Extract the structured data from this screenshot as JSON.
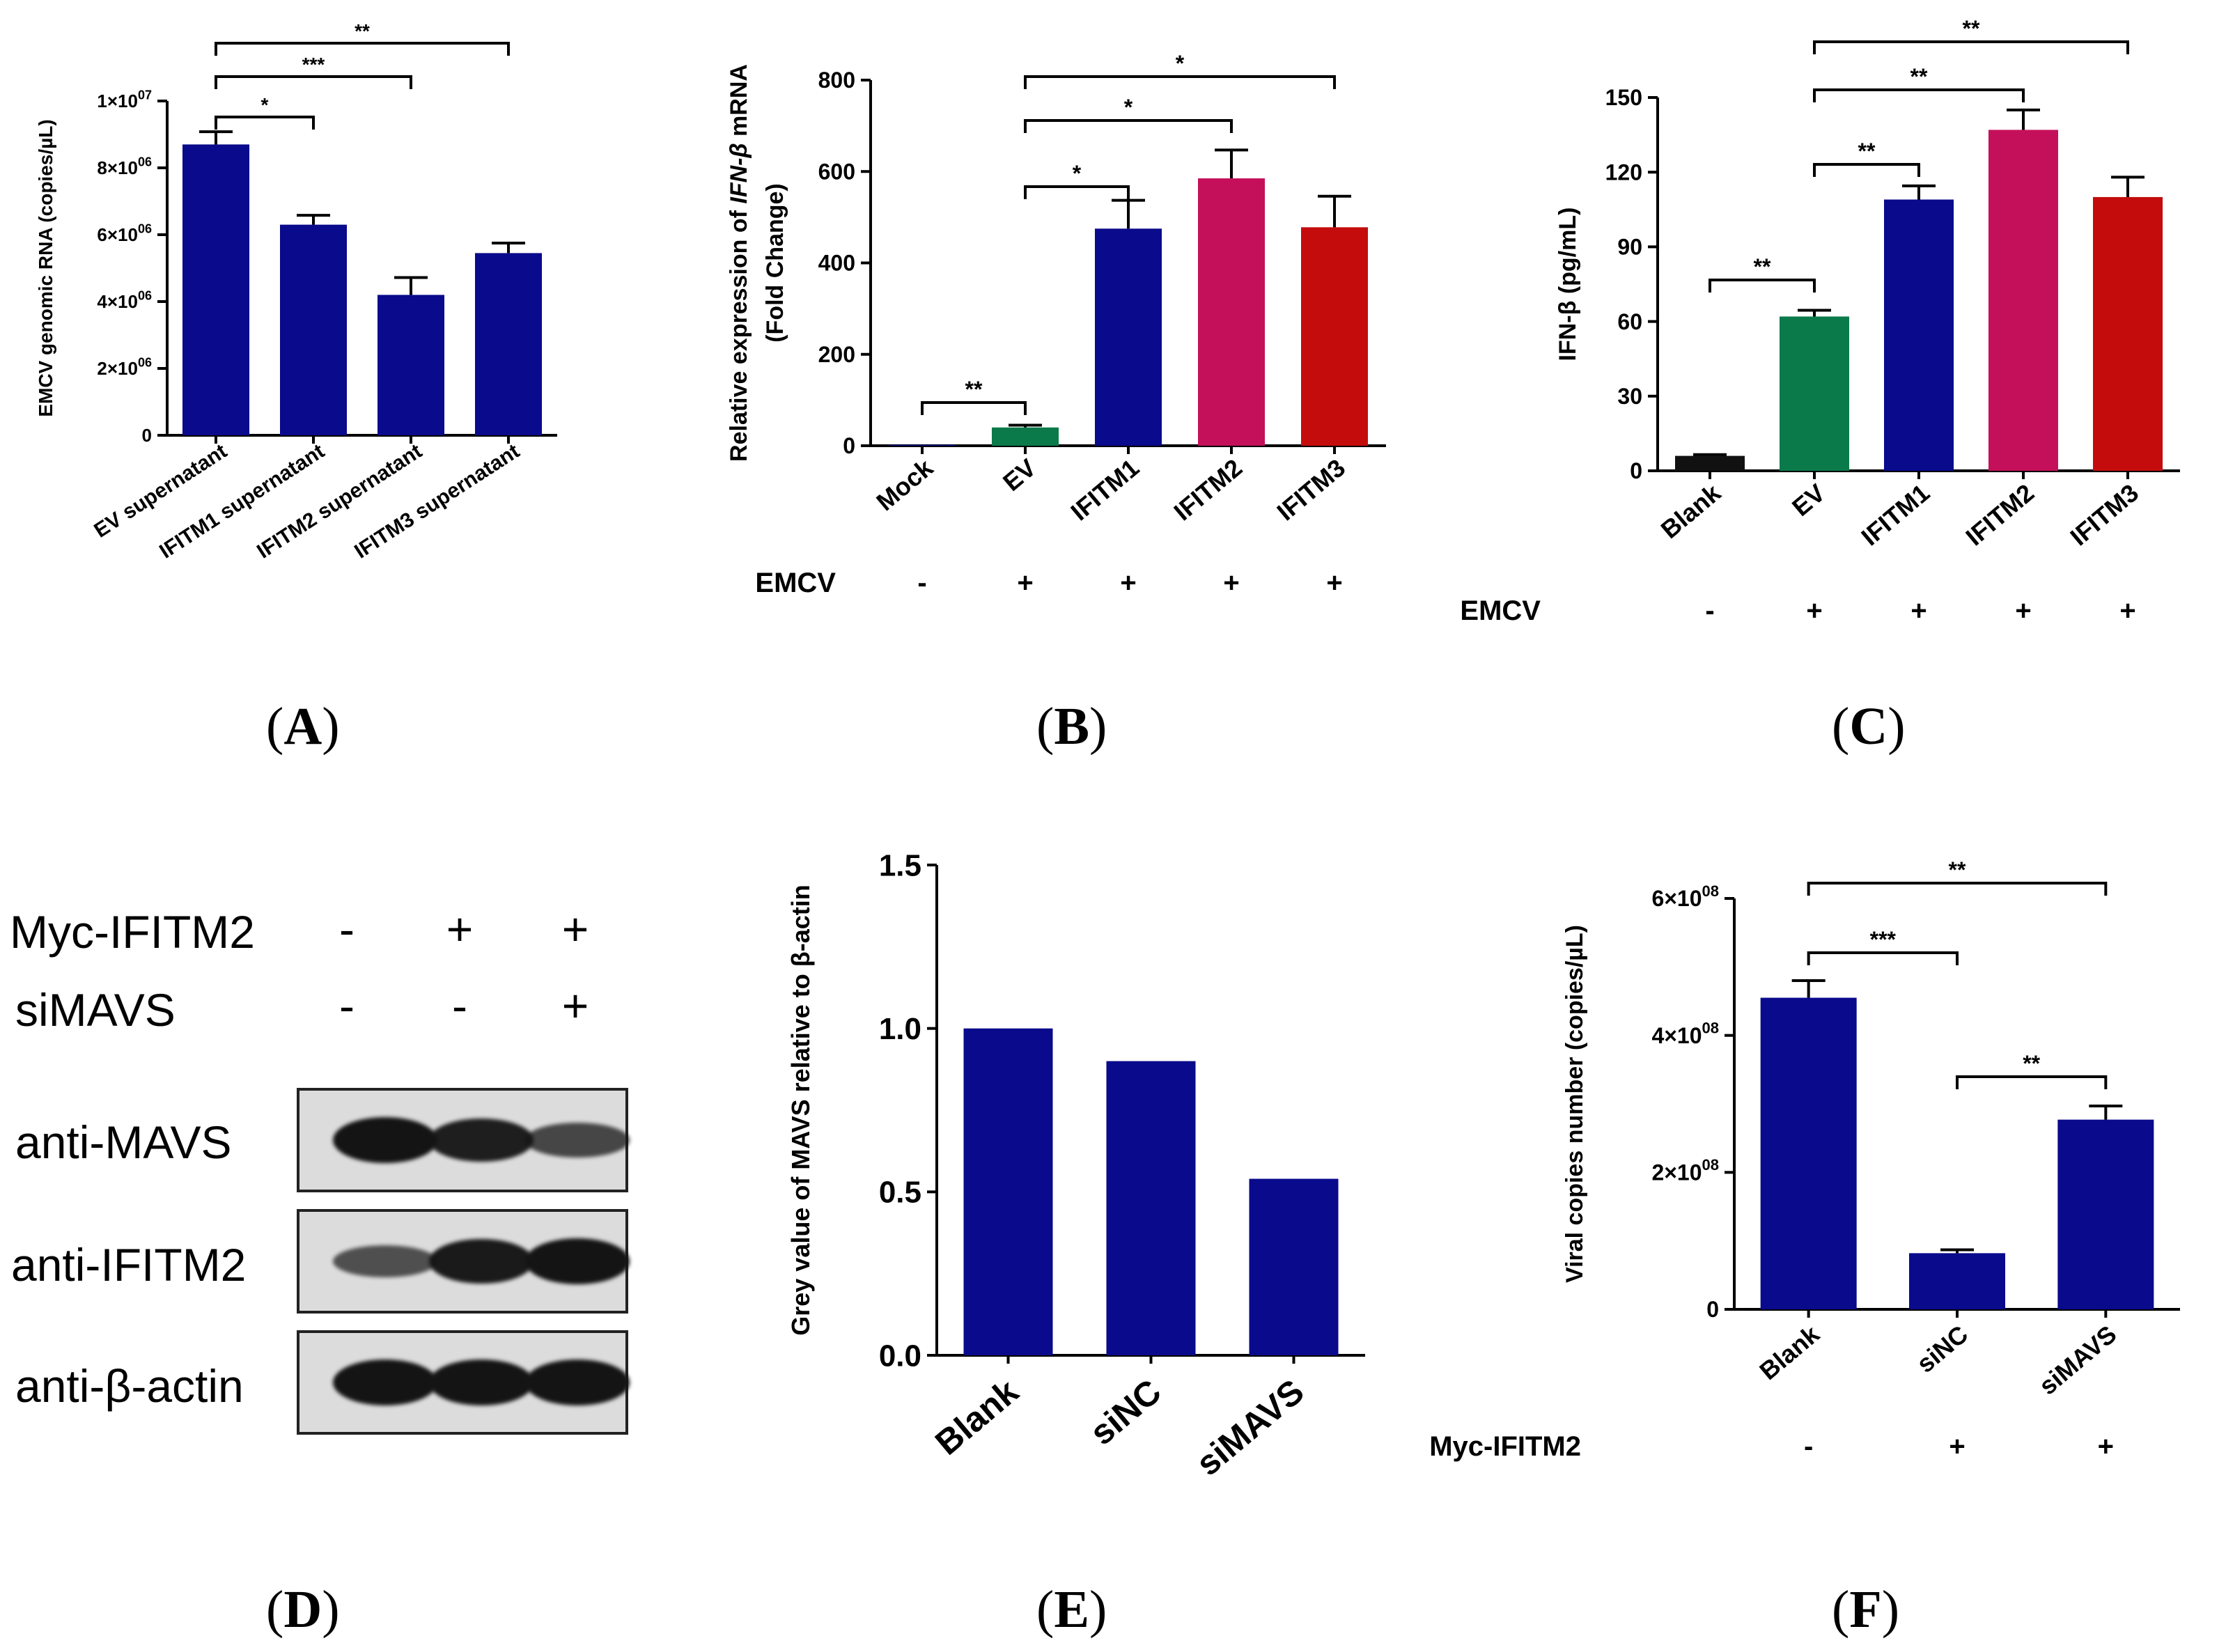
{
  "colors": {
    "navy": "#0a0a8c",
    "green": "#0b7a4a",
    "magenta": "#c4105a",
    "red": "#c40c0c",
    "black": "#111111"
  },
  "panel_labels": [
    "A",
    "B",
    "C",
    "D",
    "E",
    "F"
  ],
  "chart_data": [
    {
      "panel": "A",
      "type": "bar",
      "categories": [
        "EV supernatant",
        "IFITM1 supernatant",
        "IFITM2 supernatant",
        "IFITM3 supernatant"
      ],
      "values": [
        8700000,
        6300000,
        4200000,
        5450000
      ],
      "errors": [
        380000,
        280000,
        520000,
        300000
      ],
      "bar_colors": [
        "navy",
        "navy",
        "navy",
        "navy"
      ],
      "ylabel": "EMCV genomic RNA (copies/µL)",
      "ylim": [
        0,
        10000000
      ],
      "yticks": [
        0,
        2000000,
        4000000,
        6000000,
        8000000,
        10000000
      ],
      "ytick_labels": [
        "0",
        "2×10",
        "4×10",
        "6×10",
        "8×10",
        "1×10"
      ],
      "ytick_exps": [
        "",
        "06",
        "06",
        "06",
        "06",
        "07"
      ],
      "significance": [
        {
          "from": 0,
          "to": 1,
          "label": "*"
        },
        {
          "from": 0,
          "to": 2,
          "label": "***"
        },
        {
          "from": 0,
          "to": 3,
          "label": "**"
        }
      ]
    },
    {
      "panel": "B",
      "type": "bar",
      "categories": [
        "Mock",
        "EV",
        "IFITM1",
        "IFITM2",
        "IFITM3"
      ],
      "values": [
        2,
        40,
        475,
        585,
        478
      ],
      "errors": [
        0,
        5,
        62,
        62,
        68
      ],
      "bar_colors": [
        "navy",
        "green",
        "navy",
        "magenta",
        "red"
      ],
      "ylabel_parts": [
        "Relative expression of ",
        "IFN-β",
        " mRNA"
      ],
      "ylabel2": "(Fold Change)",
      "ylim": [
        0,
        800
      ],
      "yticks": [
        0,
        200,
        400,
        600,
        800
      ],
      "treatment": {
        "label": "EMCV",
        "signs": [
          "-",
          "+",
          "+",
          "+",
          "+"
        ]
      },
      "significance": [
        {
          "from": 0,
          "to": 1,
          "label": "**"
        },
        {
          "from": 1,
          "to": 2,
          "label": "*"
        },
        {
          "from": 1,
          "to": 3,
          "label": "*"
        },
        {
          "from": 1,
          "to": 4,
          "label": "*"
        }
      ]
    },
    {
      "panel": "C",
      "type": "bar",
      "categories": [
        "Blank",
        "EV",
        "IFITM1",
        "IFITM2",
        "IFITM3"
      ],
      "values": [
        6,
        62,
        109,
        137,
        110
      ],
      "errors": [
        0.5,
        2.5,
        5.5,
        8,
        8
      ],
      "bar_colors": [
        "black",
        "green",
        "navy",
        "magenta",
        "red"
      ],
      "ylabel": "IFN-β (pg/mL)",
      "ylim": [
        0,
        150
      ],
      "yticks": [
        0,
        30,
        60,
        90,
        120,
        150
      ],
      "treatment": {
        "label": "EMCV",
        "signs": [
          "-",
          "+",
          "+",
          "+",
          "+"
        ]
      },
      "significance": [
        {
          "from": 0,
          "to": 1,
          "label": "**"
        },
        {
          "from": 1,
          "to": 2,
          "label": "**"
        },
        {
          "from": 1,
          "to": 3,
          "label": "**"
        },
        {
          "from": 1,
          "to": 4,
          "label": "**"
        }
      ]
    },
    {
      "panel": "E",
      "type": "bar",
      "categories": [
        "Blank",
        "siNC",
        "siMAVS"
      ],
      "values": [
        1.0,
        0.9,
        0.54
      ],
      "errors": [],
      "bar_colors": [
        "navy",
        "navy",
        "navy"
      ],
      "ylabel": "Grey value of MAVS relative to β-actin",
      "ylim": [
        0,
        1.5
      ],
      "yticks": [
        0,
        0.5,
        1.0,
        1.5
      ],
      "ytick_labels": [
        "0.0",
        "0.5",
        "1.0",
        "1.5"
      ]
    },
    {
      "panel": "F",
      "type": "bar",
      "categories": [
        "Blank",
        "siNC",
        "siMAVS"
      ],
      "values": [
        455000000,
        82000000,
        277000000
      ],
      "errors": [
        25000000,
        5000000,
        20000000
      ],
      "bar_colors": [
        "navy",
        "navy",
        "navy"
      ],
      "ylabel": "Viral copies number (copies/µL)",
      "ylim": [
        0,
        600000000
      ],
      "yticks": [
        0,
        200000000,
        400000000,
        600000000
      ],
      "ytick_labels": [
        "0",
        "2×10",
        "4×10",
        "6×10"
      ],
      "ytick_exps": [
        "",
        "08",
        "08",
        "08"
      ],
      "treatment": {
        "label": "Myc-IFITM2",
        "signs": [
          "-",
          "+",
          "+"
        ]
      },
      "significance": [
        {
          "from": 0,
          "to": 1,
          "label": "***"
        },
        {
          "from": 1,
          "to": 2,
          "label": "**"
        },
        {
          "from": 0,
          "to": 2,
          "label": "**"
        }
      ]
    }
  ],
  "western_blot": {
    "panel": "D",
    "conditions": [
      {
        "label": "Myc-IFITM2",
        "signs": [
          "-",
          "+",
          "+"
        ]
      },
      {
        "label": "siMAVS",
        "signs": [
          "-",
          "-",
          "+"
        ]
      }
    ],
    "antibodies": [
      "anti-MAVS",
      "anti-IFITM2",
      "anti-β-actin"
    ],
    "band_intensity": [
      [
        1.0,
        0.9,
        0.54
      ],
      [
        0.45,
        0.95,
        1.0
      ],
      [
        1.0,
        1.0,
        1.0
      ]
    ]
  }
}
